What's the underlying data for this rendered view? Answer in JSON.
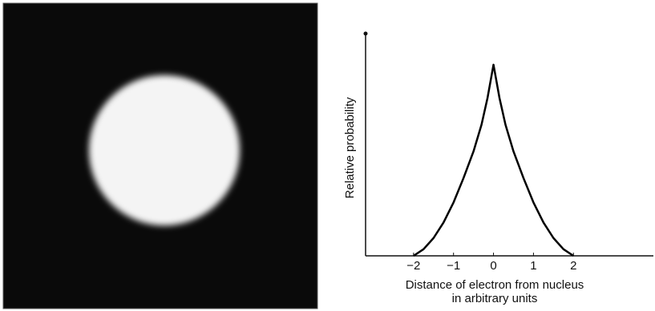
{
  "chart_data": {
    "type": "line",
    "ylabel": "Relative probability",
    "xlabel": [
      "Distance of electron from nucleus",
      "in arbitrary units"
    ],
    "x": [
      -2,
      -1.75,
      -1.5,
      -1.25,
      -1,
      -0.75,
      -0.5,
      -0.3,
      -0.15,
      0,
      0.15,
      0.3,
      0.5,
      0.75,
      1,
      1.25,
      1.5,
      1.75,
      2
    ],
    "series": [
      {
        "color": "#000000",
        "values": [
          0,
          0.03,
          0.08,
          0.15,
          0.24,
          0.35,
          0.47,
          0.59,
          0.71,
          0.86,
          0.71,
          0.59,
          0.47,
          0.35,
          0.24,
          0.15,
          0.08,
          0.03,
          0
        ]
      }
    ],
    "xlim": [
      -3.2,
      4
    ],
    "ylim": [
      0,
      1
    ],
    "xticks": [
      {
        "value": -2,
        "label": "−2"
      },
      {
        "value": -1,
        "label": "−1"
      },
      0,
      1,
      2
    ]
  }
}
